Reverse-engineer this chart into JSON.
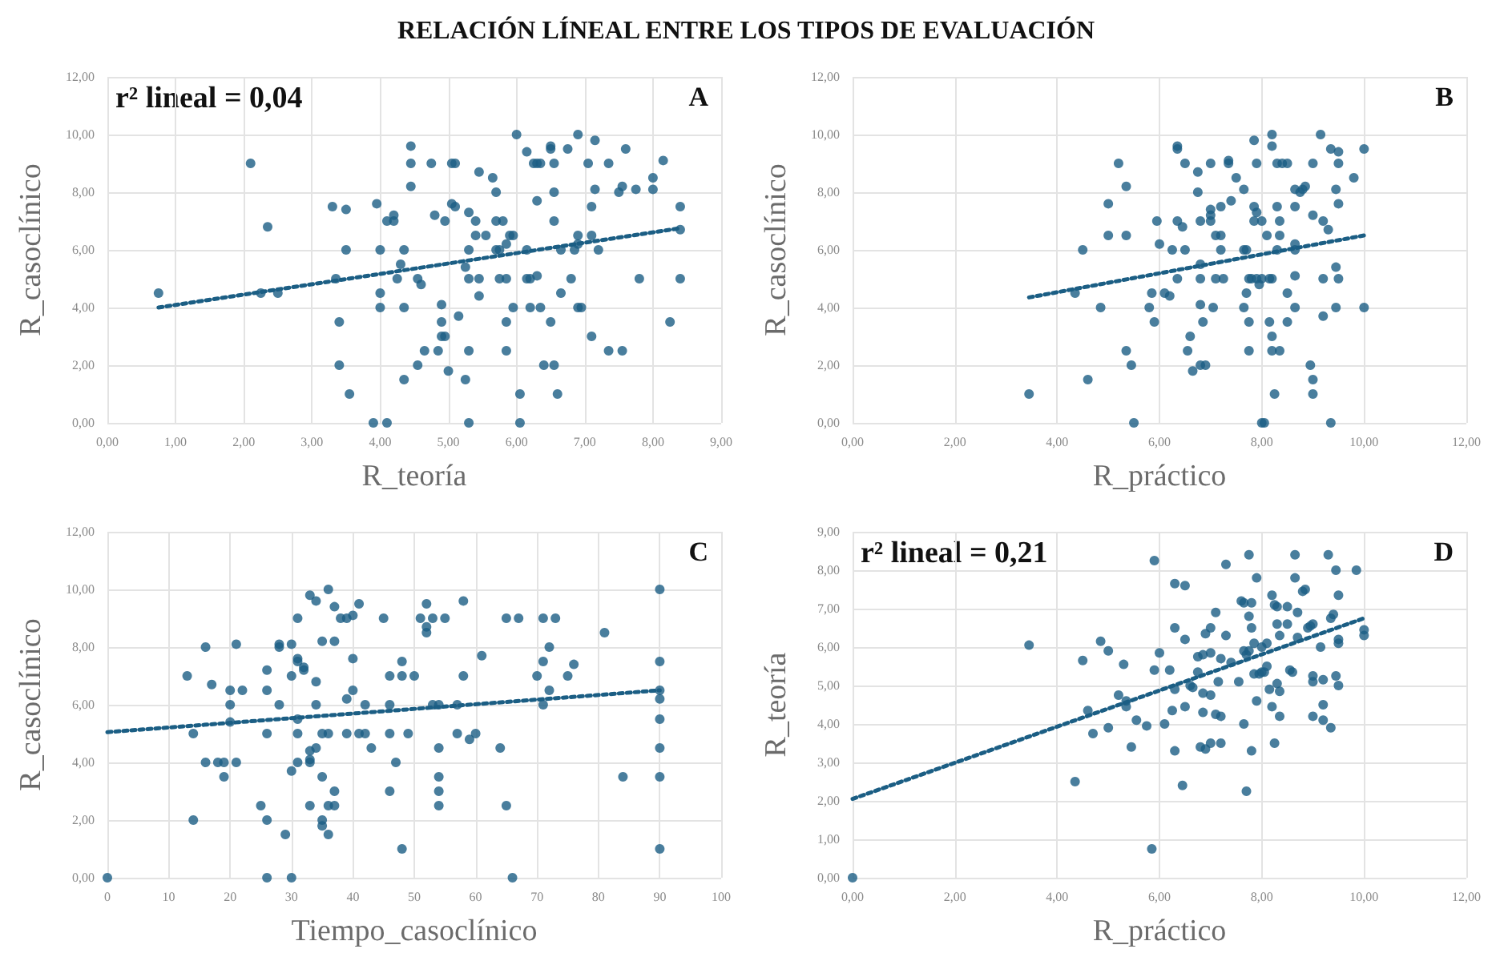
{
  "chart_data": [
    {
      "type": "scatter",
      "title": "RELACIÓN LÍNEAL ENTRE LOS TIPOS DE EVALUACIÓN",
      "xlabel": "R_teoría",
      "ylabel": "R_casoclínico",
      "annotations": [
        "r² lineal = 0,04",
        "A"
      ],
      "grid": true,
      "xlim": [
        0,
        9
      ],
      "ylim": [
        0,
        12
      ],
      "xticks": [
        {
          "value": 0,
          "label": "0,00"
        },
        {
          "value": 1,
          "label": "1,00"
        },
        {
          "value": 2,
          "label": "2,00"
        },
        {
          "value": 3,
          "label": "3,00"
        },
        {
          "value": 4,
          "label": "4,00"
        },
        {
          "value": 5,
          "label": "5,00"
        },
        {
          "value": 6,
          "label": "6,00"
        },
        {
          "value": 7,
          "label": "7,00"
        },
        {
          "value": 8,
          "label": "8,00"
        },
        {
          "value": 9,
          "label": "9,00"
        }
      ],
      "yticks": [
        {
          "value": 0,
          "label": "0,00"
        },
        {
          "value": 2,
          "label": "2,00"
        },
        {
          "value": 4,
          "label": "4,00"
        },
        {
          "value": 6,
          "label": "6,00"
        },
        {
          "value": 8,
          "label": "8,00"
        },
        {
          "value": 10,
          "label": "10,00"
        },
        {
          "value": 12,
          "label": "12,00"
        }
      ],
      "series": [
        {
          "marker": "circle",
          "color": "#1b5e84",
          "x": [
            0.75,
            2.1,
            2.25,
            2.35,
            2.5,
            3.3,
            3.35,
            3.4,
            3.4,
            3.5,
            3.5,
            3.55,
            3.9,
            3.95,
            4.0,
            4.0,
            4.0,
            4.1,
            4.1,
            4.2,
            4.2,
            4.25,
            4.3,
            4.35,
            4.35,
            4.35,
            4.45,
            4.45,
            4.45,
            4.55,
            4.6,
            4.55,
            4.65,
            4.75,
            4.8,
            4.85,
            4.9,
            4.9,
            4.9,
            4.95,
            4.95,
            5.0,
            5.05,
            5.05,
            5.1,
            5.1,
            5.15,
            5.25,
            5.25,
            5.3,
            5.3,
            5.3,
            5.3,
            5.3,
            5.4,
            5.4,
            5.45,
            5.45,
            5.45,
            5.55,
            5.65,
            5.7,
            5.7,
            5.7,
            5.75,
            5.75,
            5.8,
            5.85,
            5.85,
            5.85,
            5.85,
            5.9,
            5.95,
            5.95,
            6.0,
            6.05,
            6.05,
            6.15,
            6.15,
            6.15,
            6.2,
            6.2,
            6.25,
            6.3,
            6.3,
            6.3,
            6.35,
            6.35,
            6.4,
            6.5,
            6.5,
            6.5,
            6.55,
            6.55,
            6.55,
            6.55,
            6.6,
            6.65,
            6.65,
            6.75,
            6.8,
            6.85,
            6.9,
            6.9,
            6.9,
            6.95,
            6.9,
            7.05,
            7.1,
            7.1,
            7.1,
            7.15,
            7.15,
            7.2,
            7.35,
            7.35,
            7.5,
            7.55,
            7.55,
            7.6,
            7.75,
            7.8,
            8.0,
            8.0,
            8.15,
            8.25,
            8.4,
            8.4,
            8.4
          ],
          "values": [
            4.5,
            9,
            4.5,
            6.8,
            4.5,
            7.5,
            5,
            3.5,
            2,
            7.4,
            6,
            1,
            0,
            7.6,
            6,
            4.5,
            4,
            0,
            7,
            7.2,
            7,
            5,
            5.5,
            6,
            4,
            1.5,
            9.6,
            9,
            8.2,
            5,
            4.8,
            2,
            2.5,
            9,
            7.2,
            2.5,
            4.1,
            3.5,
            3,
            3,
            7,
            1.8,
            7.6,
            9,
            9,
            7.5,
            3.7,
            5.4,
            1.5,
            7.3,
            5,
            6,
            2.5,
            0,
            7,
            6.5,
            8.7,
            4.4,
            5,
            6.5,
            8.5,
            6,
            7,
            8,
            6,
            5,
            7,
            3.5,
            6.2,
            5,
            2.5,
            6.5,
            4,
            6.5,
            10,
            0,
            1,
            9.4,
            6,
            5,
            4,
            5,
            9,
            9,
            7.7,
            5.1,
            4,
            9,
            2,
            9.5,
            9.6,
            3.5,
            2,
            8,
            7,
            9,
            1,
            6,
            4.5,
            9.5,
            5,
            6,
            6.2,
            6.5,
            4,
            4,
            10,
            9,
            7.5,
            6.5,
            3,
            8.1,
            9.8,
            6,
            9,
            2.5,
            8,
            8.2,
            2.5,
            9.5,
            8.1,
            5,
            8.5,
            8.1,
            9.1,
            3.5,
            7.5,
            6.7,
            5
          ]
        },
        {
          "type": "line",
          "marker": "none",
          "line_style": "dotted",
          "color": "#1b5e84",
          "x": [
            0.75,
            8.4
          ],
          "values": [
            4.0,
            6.75
          ]
        }
      ]
    },
    {
      "type": "scatter",
      "xlabel": "R_práctico",
      "ylabel": "R_casoclínico",
      "annotations": [
        "B"
      ],
      "grid": true,
      "xlim": [
        0,
        12
      ],
      "ylim": [
        0,
        12
      ],
      "xticks": [
        {
          "value": 0,
          "label": "0,00"
        },
        {
          "value": 2,
          "label": "2,00"
        },
        {
          "value": 4,
          "label": "4,00"
        },
        {
          "value": 6,
          "label": "6,00"
        },
        {
          "value": 8,
          "label": "8,00"
        },
        {
          "value": 10,
          "label": "10,00"
        },
        {
          "value": 12,
          "label": "12,00"
        }
      ],
      "yticks": [
        {
          "value": 0,
          "label": "0,00"
        },
        {
          "value": 2,
          "label": "2,00"
        },
        {
          "value": 4,
          "label": "4,00"
        },
        {
          "value": 6,
          "label": "6,00"
        },
        {
          "value": 8,
          "label": "8,00"
        },
        {
          "value": 10,
          "label": "10,00"
        },
        {
          "value": 12,
          "label": "12,00"
        }
      ],
      "series": [
        {
          "marker": "circle",
          "color": "#1b5e84",
          "x": [
            3.45,
            4.35,
            4.5,
            4.6,
            4.85,
            5.0,
            5.0,
            5.2,
            5.35,
            5.35,
            5.35,
            5.45,
            5.5,
            5.8,
            5.85,
            5.9,
            5.95,
            6.0,
            6.1,
            6.2,
            6.25,
            6.35,
            6.35,
            6.35,
            6.35,
            6.45,
            6.5,
            6.5,
            6.55,
            6.6,
            6.65,
            6.75,
            6.75,
            6.8,
            6.8,
            6.8,
            6.8,
            6.8,
            6.85,
            6.9,
            7.0,
            7.0,
            7.0,
            7.0,
            7.05,
            7.1,
            7.1,
            7.2,
            7.2,
            7.2,
            7.25,
            7.35,
            7.35,
            7.4,
            7.5,
            7.65,
            7.65,
            7.65,
            7.7,
            7.7,
            7.75,
            7.75,
            7.75,
            7.8,
            7.85,
            7.85,
            7.85,
            7.9,
            7.9,
            7.9,
            7.95,
            8.0,
            8.0,
            8.0,
            8.05,
            8.1,
            8.15,
            8.15,
            8.2,
            8.2,
            8.2,
            8.2,
            8.2,
            8.25,
            8.3,
            8.3,
            8.3,
            8.35,
            8.35,
            8.35,
            8.4,
            8.5,
            8.5,
            8.5,
            8.65,
            8.65,
            8.65,
            8.65,
            8.65,
            8.65,
            8.75,
            8.8,
            8.85,
            8.95,
            9.0,
            9.0,
            9.0,
            9.0,
            9.15,
            9.2,
            9.2,
            9.2,
            9.3,
            9.35,
            9.35,
            9.45,
            9.45,
            9.45,
            9.5,
            9.5,
            9.5,
            9.5,
            9.8,
            10,
            10
          ],
          "values": [
            1,
            4.5,
            6,
            1.5,
            4,
            7.6,
            6.5,
            9,
            8.2,
            6.5,
            2.5,
            2,
            0,
            4,
            4.5,
            3.5,
            7,
            6.2,
            4.5,
            4.4,
            6,
            9.6,
            9.5,
            7,
            5,
            6.8,
            9,
            6,
            2.5,
            3,
            1.8,
            8.7,
            8,
            7,
            5.5,
            5,
            4.1,
            2,
            3.5,
            2,
            9,
            7.4,
            7.2,
            7,
            4,
            6.5,
            5,
            7.5,
            6,
            6.5,
            5,
            9.1,
            9,
            7.7,
            8.5,
            6,
            8.1,
            4,
            6,
            4.5,
            5,
            3.5,
            2.5,
            5,
            9.8,
            7.5,
            7,
            7.3,
            9,
            5,
            4.8,
            7,
            5,
            0,
            0,
            6.5,
            5,
            3.5,
            9.6,
            10,
            5,
            3,
            2.5,
            1,
            9,
            7.5,
            6,
            7,
            6.5,
            2.5,
            9,
            9,
            4.5,
            3.5,
            8.1,
            7.5,
            6.2,
            6,
            5.1,
            4,
            8,
            8.1,
            8.2,
            2,
            9,
            7.2,
            1.5,
            1,
            10,
            7,
            5,
            3.7,
            6.7,
            9.5,
            0,
            8.1,
            5.4,
            4,
            9.4,
            9,
            7.6,
            5,
            8.5,
            9.5,
            4
          ]
        },
        {
          "type": "line",
          "marker": "none",
          "line_style": "dotted",
          "color": "#1b5e84",
          "x": [
            3.45,
            10
          ],
          "values": [
            4.35,
            6.5
          ]
        }
      ]
    },
    {
      "type": "scatter",
      "xlabel": "Tiempo_casoclínico",
      "ylabel": "R_casoclínico",
      "annotations": [
        "C"
      ],
      "grid": true,
      "xlim": [
        0,
        100
      ],
      "ylim": [
        0,
        12
      ],
      "xticks": [
        0,
        10,
        20,
        30,
        40,
        50,
        60,
        70,
        80,
        90,
        100
      ],
      "yticks": [
        {
          "value": 0,
          "label": "0,00"
        },
        {
          "value": 2,
          "label": "2,00"
        },
        {
          "value": 4,
          "label": "4,00"
        },
        {
          "value": 6,
          "label": "6,00"
        },
        {
          "value": 8,
          "label": "8,00"
        },
        {
          "value": 10,
          "label": "10,00"
        },
        {
          "value": 12,
          "label": "12,00"
        }
      ],
      "series": [
        {
          "marker": "circle",
          "color": "#1b5e84",
          "x": [
            0,
            13,
            14,
            14,
            16,
            16,
            17,
            18,
            19,
            19,
            20,
            20,
            20,
            21,
            21,
            22,
            25,
            26,
            26,
            26,
            26,
            26,
            28,
            28,
            28,
            29,
            30,
            30,
            30,
            30,
            31,
            31,
            31,
            31,
            31,
            31,
            32,
            32,
            33,
            33,
            33,
            33,
            33,
            34,
            34,
            34,
            34,
            35,
            35,
            35,
            35,
            35,
            36,
            36,
            36,
            36,
            37,
            37,
            37,
            37,
            38,
            39,
            39,
            39,
            40,
            40,
            40,
            41,
            41,
            42,
            42,
            43,
            45,
            46,
            46,
            46,
            46,
            47,
            48,
            48,
            48,
            49,
            50,
            51,
            52,
            52,
            52,
            53,
            53,
            54,
            54,
            54,
            54,
            54,
            55,
            57,
            57,
            58,
            58,
            59,
            60,
            61,
            64,
            65,
            65,
            66,
            67,
            70,
            71,
            71,
            71,
            72,
            72,
            73,
            75,
            76,
            81,
            84,
            90,
            90,
            90,
            90,
            90,
            90,
            90,
            90
          ],
          "values": [
            0,
            7,
            5,
            2,
            8,
            4,
            6.7,
            4,
            4,
            3.5,
            6.5,
            6,
            5.4,
            8.1,
            4,
            6.5,
            2.5,
            7.2,
            6.5,
            5,
            2,
            0,
            8.1,
            8,
            6,
            1.5,
            8.1,
            7,
            3.7,
            0,
            9,
            7.6,
            7.5,
            5.5,
            5,
            4,
            7.3,
            7.2,
            9.8,
            4.4,
            4.1,
            4,
            2.5,
            9.6,
            6.8,
            6,
            4.5,
            8.2,
            5,
            3.5,
            2,
            1.8,
            10,
            5,
            2.5,
            1.5,
            9.4,
            8.2,
            3,
            2.5,
            9,
            9,
            6.2,
            5,
            9.1,
            7.6,
            6.5,
            9.5,
            5,
            6,
            5,
            4.5,
            9,
            7,
            6,
            5,
            3,
            4,
            7.5,
            7,
            1,
            5,
            7,
            9,
            9.5,
            8.7,
            8.5,
            9,
            6,
            6,
            4.5,
            3.5,
            3,
            2.5,
            9,
            6,
            5,
            9.6,
            7,
            4.8,
            5,
            7.7,
            4.5,
            9,
            2.5,
            0,
            9,
            7,
            9,
            7.5,
            6,
            8,
            6.5,
            9,
            7,
            7.4,
            8.5,
            3.5,
            10,
            7.5,
            6.5,
            6.2,
            5.5,
            4.5,
            3.5,
            1
          ]
        },
        {
          "type": "line",
          "marker": "none",
          "line_style": "dotted",
          "color": "#1b5e84",
          "x": [
            0,
            90
          ],
          "values": [
            5.05,
            6.5
          ]
        }
      ]
    },
    {
      "type": "scatter",
      "xlabel": "R_práctico",
      "ylabel": "R_teoría",
      "annotations": [
        "r² lineal = 0,21",
        "D"
      ],
      "grid": true,
      "xlim": [
        0,
        12
      ],
      "ylim": [
        0,
        9
      ],
      "xticks": [
        {
          "value": 0,
          "label": "0,00"
        },
        {
          "value": 2,
          "label": "2,00"
        },
        {
          "value": 4,
          "label": "4,00"
        },
        {
          "value": 6,
          "label": "6,00"
        },
        {
          "value": 8,
          "label": "8,00"
        },
        {
          "value": 10,
          "label": "10,00"
        },
        {
          "value": 12,
          "label": "12,00"
        }
      ],
      "yticks": [
        {
          "value": 0,
          "label": "0,00"
        },
        {
          "value": 1,
          "label": "1,00"
        },
        {
          "value": 2,
          "label": "2,00"
        },
        {
          "value": 3,
          "label": "3,00"
        },
        {
          "value": 4,
          "label": "4,00"
        },
        {
          "value": 5,
          "label": "5,00"
        },
        {
          "value": 6,
          "label": "6,00"
        },
        {
          "value": 7,
          "label": "7,00"
        },
        {
          "value": 8,
          "label": "8,00"
        },
        {
          "value": 9,
          "label": "9,00"
        }
      ],
      "series": [
        {
          "marker": "circle",
          "color": "#1b5e84",
          "x": [
            0,
            3.45,
            4.35,
            4.5,
            4.6,
            4.7,
            4.85,
            5.0,
            5.0,
            5.2,
            5.3,
            5.35,
            5.35,
            5.45,
            5.55,
            5.75,
            5.85,
            5.9,
            5.9,
            6.0,
            6.1,
            6.2,
            6.25,
            6.3,
            6.3,
            6.3,
            6.3,
            6.45,
            6.5,
            6.5,
            6.5,
            6.6,
            6.65,
            6.75,
            6.75,
            6.8,
            6.85,
            6.85,
            6.85,
            6.9,
            6.9,
            7.0,
            7.0,
            7.0,
            7.0,
            7.1,
            7.1,
            7.15,
            7.2,
            7.2,
            7.2,
            7.3,
            7.3,
            7.4,
            7.55,
            7.6,
            7.65,
            7.65,
            7.65,
            7.7,
            7.7,
            7.75,
            7.75,
            7.75,
            7.8,
            7.8,
            7.8,
            7.85,
            7.85,
            7.9,
            7.9,
            7.95,
            8.0,
            8.0,
            8.05,
            8.1,
            8.1,
            8.15,
            8.2,
            8.2,
            8.25,
            8.25,
            8.3,
            8.3,
            8.3,
            8.35,
            8.35,
            8.35,
            8.5,
            8.5,
            8.55,
            8.6,
            8.65,
            8.65,
            8.7,
            8.7,
            8.8,
            8.85,
            8.9,
            8.95,
            9.0,
            9.0,
            9.0,
            9.0,
            9.15,
            9.2,
            9.2,
            9.2,
            9.3,
            9.35,
            9.35,
            9.4,
            9.45,
            9.45,
            9.5,
            9.5,
            9.5,
            9.5,
            9.85,
            10,
            10
          ],
          "values": [
            0,
            6.05,
            2.5,
            5.65,
            4.35,
            3.75,
            6.15,
            5.9,
            3.9,
            4.75,
            5.55,
            4.6,
            4.45,
            3.4,
            4.1,
            3.95,
            0.75,
            8.25,
            5.4,
            5.85,
            4.0,
            5.4,
            4.35,
            7.65,
            6.5,
            4.9,
            3.3,
            2.4,
            7.6,
            6.2,
            4.45,
            5.0,
            4.95,
            5.75,
            5.35,
            3.4,
            5.8,
            4.8,
            4.3,
            6.35,
            3.35,
            6.5,
            5.85,
            4.75,
            3.5,
            6.9,
            4.25,
            5.1,
            5.7,
            4.2,
            3.5,
            8.15,
            6.3,
            5.6,
            5.1,
            7.2,
            7.15,
            5.9,
            4.0,
            5.8,
            2.25,
            8.4,
            6.8,
            5.9,
            7.15,
            6.5,
            3.3,
            6.1,
            5.3,
            7.8,
            4.6,
            5.3,
            6.0,
            5.35,
            5.35,
            6.1,
            5.5,
            4.9,
            7.35,
            4.45,
            7.1,
            3.5,
            7.05,
            6.6,
            5.05,
            6.3,
            4.85,
            4.2,
            7.05,
            6.6,
            5.4,
            5.35,
            8.4,
            7.8,
            6.25,
            6.9,
            7.45,
            7.5,
            6.5,
            6.55,
            6.6,
            5.25,
            5.1,
            4.2,
            6.0,
            5.15,
            4.5,
            4.1,
            8.4,
            6.75,
            3.9,
            6.85,
            8.0,
            5.25,
            7.35,
            6.2,
            6.1,
            5.0,
            8.0,
            6.45,
            6.3
          ]
        },
        {
          "type": "line",
          "marker": "none",
          "line_style": "dotted",
          "color": "#1b5e84",
          "x": [
            0,
            10
          ],
          "values": [
            2.05,
            6.75
          ]
        }
      ]
    }
  ]
}
